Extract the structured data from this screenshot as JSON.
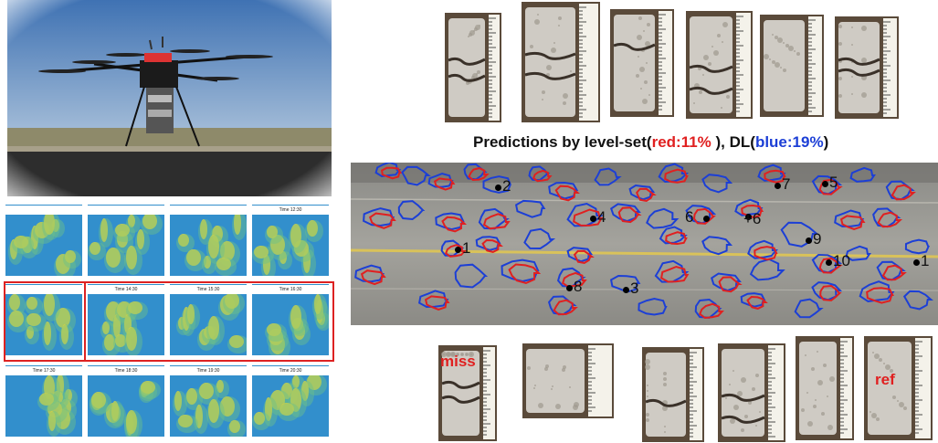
{
  "title": {
    "prefix": "Predictions by level-set(",
    "red_part": "red:11%",
    "middle": " ), DL(",
    "blue_part": "blue:19%",
    "suffix": ")"
  },
  "colors": {
    "level_set": "#e02020",
    "deep_learning": "#1c3fd6"
  },
  "thermal_captions": [
    "",
    "",
    "",
    "Time 12:30",
    "",
    "Time 14:30",
    "Time 15:30",
    "Time 16:30",
    "Time 17:30",
    "Time 18:30",
    "Time 19:30",
    "Time 20:30"
  ],
  "road_labels": [
    "1",
    "2",
    "3",
    "4",
    "5",
    "6",
    "+6",
    "7",
    "8",
    "9",
    "10",
    "1"
  ],
  "core_tags": {
    "miss": "miss",
    "ref": "ref"
  }
}
